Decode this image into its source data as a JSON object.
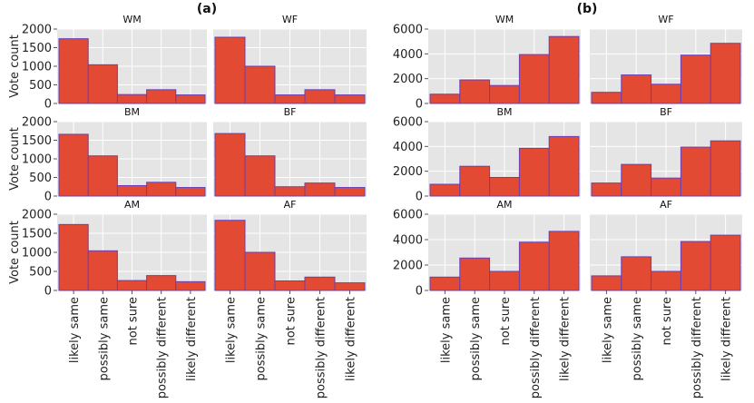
{
  "chart_data": [
    {
      "group": "(a)",
      "type": "bar",
      "ylabel": "Vote count",
      "ylim": [
        0,
        2000
      ],
      "yticks": [
        "0",
        "500",
        "1000",
        "1500",
        "2000"
      ],
      "categories": [
        "likely same",
        "possibly same",
        "not sure",
        "possibly different",
        "likely different"
      ],
      "panels": [
        {
          "title": "WM",
          "values": [
            1740,
            1040,
            240,
            370,
            230
          ]
        },
        {
          "title": "WF",
          "values": [
            1780,
            1000,
            230,
            370,
            230
          ]
        },
        {
          "title": "BM",
          "values": [
            1660,
            1080,
            280,
            370,
            230
          ]
        },
        {
          "title": "BF",
          "values": [
            1680,
            1080,
            250,
            350,
            230
          ]
        },
        {
          "title": "AM",
          "values": [
            1730,
            1040,
            260,
            390,
            230
          ]
        },
        {
          "title": "AF",
          "values": [
            1840,
            1000,
            250,
            350,
            200
          ]
        }
      ]
    },
    {
      "group": "(b)",
      "type": "bar",
      "ylabel": "",
      "ylim": [
        0,
        6000
      ],
      "yticks": [
        "0",
        "2000",
        "4000",
        "6000"
      ],
      "categories": [
        "likely same",
        "possibly same",
        "not sure",
        "possibly different",
        "likely different"
      ],
      "panels": [
        {
          "title": "WM",
          "values": [
            750,
            1900,
            1450,
            3950,
            5400
          ]
        },
        {
          "title": "WF",
          "values": [
            900,
            2300,
            1550,
            3900,
            4850
          ]
        },
        {
          "title": "BM",
          "values": [
            950,
            2400,
            1500,
            3850,
            4800
          ]
        },
        {
          "title": "BF",
          "values": [
            1050,
            2550,
            1450,
            3950,
            4450
          ]
        },
        {
          "title": "AM",
          "values": [
            1050,
            2550,
            1500,
            3800,
            4650
          ]
        },
        {
          "title": "AF",
          "values": [
            1150,
            2650,
            1500,
            3850,
            4350
          ]
        }
      ]
    }
  ]
}
